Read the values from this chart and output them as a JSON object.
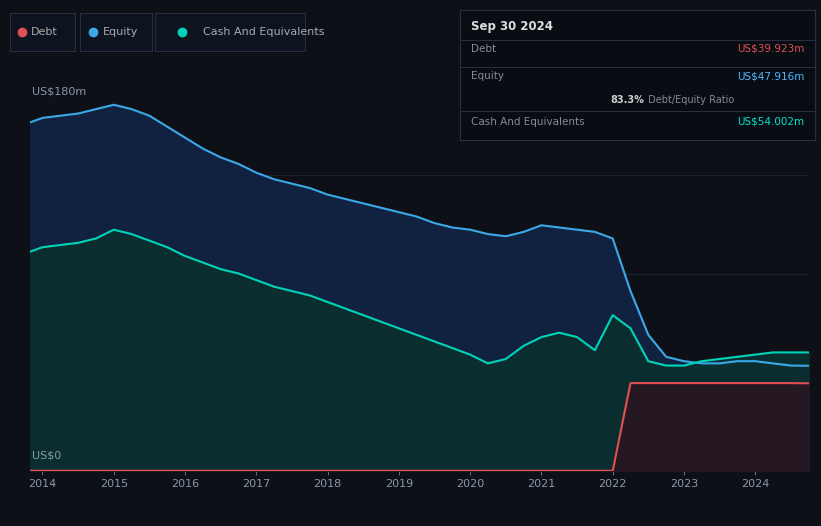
{
  "background_color": "#0d1117",
  "plot_bg_color": "#0d1117",
  "grid_color": "#1e2d3d",
  "title_box": {
    "date": "Sep 30 2024",
    "debt_label": "Debt",
    "debt_value": "US$39.923m",
    "debt_color": "#e05050",
    "equity_label": "Equity",
    "equity_value": "US$47.916m",
    "equity_color": "#4db8ff",
    "ratio_text": " Debt/Equity Ratio",
    "ratio_bold": "83.3%",
    "cash_label": "Cash And Equivalents",
    "cash_value": "US$54.002m",
    "cash_color": "#00e5cc",
    "box_bg": "#080d14",
    "box_border": "#2a3040"
  },
  "ylim": [
    0,
    180
  ],
  "ylabel": "US$180m",
  "y0label": "US$0",
  "ytick_lines": [
    45,
    90,
    135
  ],
  "equity_color": "#3ba8e8",
  "equity_fill": "#112240",
  "cash_color": "#00d4b8",
  "cash_fill": "#0a2e30",
  "debt_color": "#e05050",
  "debt_fill": "#2a1520",
  "legend_box_bg": "#0d1420",
  "legend_box_border": "#2a3040",
  "equity_data": {
    "years": [
      2013.83,
      2014.0,
      2014.25,
      2014.5,
      2014.75,
      2015.0,
      2015.25,
      2015.5,
      2015.75,
      2016.0,
      2016.25,
      2016.5,
      2016.75,
      2017.0,
      2017.25,
      2017.5,
      2017.75,
      2018.0,
      2018.25,
      2018.5,
      2018.75,
      2019.0,
      2019.25,
      2019.5,
      2019.75,
      2020.0,
      2020.25,
      2020.5,
      2020.75,
      2021.0,
      2021.25,
      2021.5,
      2021.75,
      2022.0,
      2022.25,
      2022.5,
      2022.75,
      2023.0,
      2023.25,
      2023.5,
      2023.75,
      2024.0,
      2024.25,
      2024.5,
      2024.75
    ],
    "values": [
      159,
      161,
      162,
      163,
      165,
      167,
      165,
      162,
      157,
      152,
      147,
      143,
      140,
      136,
      133,
      131,
      129,
      126,
      124,
      122,
      120,
      118,
      116,
      113,
      111,
      110,
      108,
      107,
      109,
      112,
      111,
      110,
      109,
      106,
      82,
      62,
      52,
      50,
      49,
      49,
      50,
      50,
      49,
      48,
      47.9
    ]
  },
  "cash_data": {
    "years": [
      2013.83,
      2014.0,
      2014.25,
      2014.5,
      2014.75,
      2015.0,
      2015.25,
      2015.5,
      2015.75,
      2016.0,
      2016.25,
      2016.5,
      2016.75,
      2017.0,
      2017.25,
      2017.5,
      2017.75,
      2018.0,
      2018.25,
      2018.5,
      2018.75,
      2019.0,
      2019.25,
      2019.5,
      2019.75,
      2020.0,
      2020.25,
      2020.5,
      2020.75,
      2021.0,
      2021.25,
      2021.5,
      2021.75,
      2022.0,
      2022.25,
      2022.5,
      2022.75,
      2023.0,
      2023.25,
      2023.5,
      2023.75,
      2024.0,
      2024.25,
      2024.5,
      2024.75
    ],
    "values": [
      100,
      102,
      103,
      104,
      106,
      110,
      108,
      105,
      102,
      98,
      95,
      92,
      90,
      87,
      84,
      82,
      80,
      77,
      74,
      71,
      68,
      65,
      62,
      59,
      56,
      53,
      49,
      51,
      57,
      61,
      63,
      61,
      55,
      71,
      65,
      50,
      48,
      48,
      50,
      51,
      52,
      53,
      54,
      54,
      54.0
    ]
  },
  "debt_data": {
    "years": [
      2013.83,
      2014.0,
      2014.25,
      2014.5,
      2014.75,
      2015.0,
      2015.25,
      2015.5,
      2015.75,
      2016.0,
      2016.25,
      2016.5,
      2016.75,
      2017.0,
      2017.25,
      2017.5,
      2017.75,
      2018.0,
      2018.25,
      2018.5,
      2018.75,
      2019.0,
      2019.25,
      2019.5,
      2019.75,
      2020.0,
      2020.25,
      2020.5,
      2020.75,
      2021.0,
      2021.25,
      2021.5,
      2021.75,
      2022.0,
      2022.001,
      2022.25,
      2022.5,
      2022.75,
      2023.0,
      2023.25,
      2023.5,
      2023.75,
      2024.0,
      2024.25,
      2024.5,
      2024.75
    ],
    "values": [
      0,
      0,
      0,
      0,
      0,
      0,
      0,
      0,
      0,
      0,
      0,
      0,
      0,
      0,
      0,
      0,
      0,
      0,
      0,
      0,
      0,
      0,
      0,
      0,
      0,
      0,
      0,
      0,
      0,
      0,
      0,
      0,
      0,
      0,
      0,
      40,
      40,
      40,
      40,
      40,
      40,
      40,
      40,
      40,
      40,
      39.9
    ]
  },
  "xtick_labels": [
    "2014",
    "2015",
    "2016",
    "2017",
    "2018",
    "2019",
    "2020",
    "2021",
    "2022",
    "2023",
    "2024"
  ],
  "xtick_positions": [
    2014,
    2015,
    2016,
    2017,
    2018,
    2019,
    2020,
    2021,
    2022,
    2023,
    2024
  ],
  "legend_items": [
    {
      "label": "Debt",
      "color": "#e05050"
    },
    {
      "label": "Equity",
      "color": "#3ba8e8"
    },
    {
      "label": "Cash And Equivalents",
      "color": "#00d4b8"
    }
  ]
}
